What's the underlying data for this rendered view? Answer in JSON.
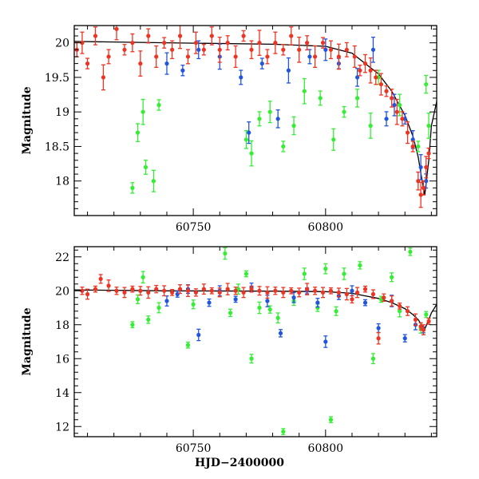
{
  "colors": {
    "green": "#33ee33",
    "blue": "#2255dd",
    "red": "#ee3322",
    "model": "#000000"
  },
  "chart_data": [
    {
      "type": "scatter",
      "panel": "top",
      "xlabel": "",
      "ylabel": "Magnitude",
      "xlim": [
        60705,
        60842
      ],
      "ylim": [
        20.25,
        17.5
      ],
      "y_inverted": true,
      "x_ticks": [
        60750,
        60800
      ],
      "y_ticks": [
        18,
        18.5,
        19,
        19.5,
        20
      ],
      "grid": false,
      "series": [
        {
          "color": "green",
          "points": [
            [
              60727,
              17.9
            ],
            [
              60729,
              18.7
            ],
            [
              60731,
              19.0
            ],
            [
              60732,
              18.2
            ],
            [
              60735,
              18.0
            ],
            [
              60737,
              19.1
            ],
            [
              60770,
              18.6
            ],
            [
              60772,
              18.4
            ],
            [
              60775,
              18.9
            ],
            [
              60779,
              19.0
            ],
            [
              60784,
              18.5
            ],
            [
              60788,
              18.8
            ],
            [
              60792,
              19.3
            ],
            [
              60798,
              19.2
            ],
            [
              60803,
              18.6
            ],
            [
              60807,
              19.0
            ],
            [
              60812,
              19.2
            ],
            [
              60817,
              18.8
            ],
            [
              60820,
              19.5
            ],
            [
              60828,
              19.1
            ],
            [
              60835,
              18.5
            ],
            [
              60838,
              19.4
            ],
            [
              60839,
              18.8
            ]
          ]
        },
        {
          "color": "blue",
          "points": [
            [
              60740,
              19.7
            ],
            [
              60746,
              19.6
            ],
            [
              60752,
              19.9
            ],
            [
              60760,
              19.8
            ],
            [
              60768,
              19.5
            ],
            [
              60771,
              18.7
            ],
            [
              60776,
              19.7
            ],
            [
              60782,
              18.9
            ],
            [
              60786,
              19.6
            ],
            [
              60794,
              19.8
            ],
            [
              60800,
              19.9
            ],
            [
              60805,
              19.7
            ],
            [
              60812,
              19.5
            ],
            [
              60818,
              19.9
            ],
            [
              60823,
              18.9
            ],
            [
              60826,
              19.1
            ],
            [
              60830,
              18.9
            ],
            [
              60833,
              18.6
            ],
            [
              60836,
              18.2
            ],
            [
              60838,
              18.0
            ]
          ]
        },
        {
          "color": "red",
          "points": [
            [
              60706,
              19.9
            ],
            [
              60708,
              20.0
            ],
            [
              60710,
              19.7
            ],
            [
              60713,
              20.1
            ],
            [
              60716,
              19.5
            ],
            [
              60718,
              19.8
            ],
            [
              60721,
              20.2
            ],
            [
              60724,
              19.9
            ],
            [
              60727,
              20.0
            ],
            [
              60730,
              19.7
            ],
            [
              60733,
              20.1
            ],
            [
              60736,
              19.8
            ],
            [
              60739,
              20.0
            ],
            [
              60742,
              19.9
            ],
            [
              60745,
              20.1
            ],
            [
              60748,
              19.8
            ],
            [
              60751,
              20.0
            ],
            [
              60754,
              19.9
            ],
            [
              60757,
              20.1
            ],
            [
              60760,
              19.9
            ],
            [
              60763,
              20.0
            ],
            [
              60766,
              19.8
            ],
            [
              60769,
              20.1
            ],
            [
              60772,
              19.9
            ],
            [
              60775,
              20.0
            ],
            [
              60778,
              19.8
            ],
            [
              60781,
              20.0
            ],
            [
              60784,
              19.9
            ],
            [
              60787,
              20.1
            ],
            [
              60790,
              19.9
            ],
            [
              60793,
              20.0
            ],
            [
              60796,
              19.8
            ],
            [
              60799,
              20.0
            ],
            [
              60802,
              19.9
            ],
            [
              60805,
              19.8
            ],
            [
              60808,
              19.9
            ],
            [
              60811,
              19.8
            ],
            [
              60813,
              19.6
            ],
            [
              60815,
              19.7
            ],
            [
              60817,
              19.6
            ],
            [
              60819,
              19.5
            ],
            [
              60821,
              19.4
            ],
            [
              60823,
              19.3
            ],
            [
              60825,
              19.2
            ],
            [
              60827,
              19.0
            ],
            [
              60829,
              18.9
            ],
            [
              60831,
              18.7
            ],
            [
              60833,
              18.5
            ],
            [
              60835,
              18.0
            ],
            [
              60836,
              17.8
            ],
            [
              60837,
              17.9
            ],
            [
              60838,
              18.2
            ],
            [
              60839,
              18.4
            ]
          ]
        }
      ],
      "model_curve": [
        [
          60705,
          20.02
        ],
        [
          60740,
          20.0
        ],
        [
          60780,
          19.98
        ],
        [
          60800,
          19.95
        ],
        [
          60810,
          19.85
        ],
        [
          60815,
          19.7
        ],
        [
          60820,
          19.55
        ],
        [
          60825,
          19.3
        ],
        [
          60830,
          18.95
        ],
        [
          60833,
          18.65
        ],
        [
          60835,
          18.35
        ],
        [
          60836.5,
          18.0
        ],
        [
          60837.5,
          17.8
        ],
        [
          60839,
          18.3
        ],
        [
          60840,
          18.8
        ],
        [
          60842,
          19.15
        ]
      ]
    },
    {
      "type": "scatter",
      "panel": "bottom",
      "xlabel": "HJD−2400000",
      "ylabel": "Magnitude",
      "xlim": [
        60705,
        60842
      ],
      "ylim": [
        22.6,
        11.4
      ],
      "y_inverted": true,
      "x_ticks": [
        60750,
        60800
      ],
      "y_ticks": [
        12,
        14,
        16,
        18,
        20,
        22
      ],
      "grid": false,
      "series": [
        {
          "color": "green",
          "points": [
            [
              60727,
              18.0
            ],
            [
              60729,
              19.5
            ],
            [
              60731,
              20.8
            ],
            [
              60733,
              18.3
            ],
            [
              60737,
              19.0
            ],
            [
              60748,
              16.8
            ],
            [
              60750,
              19.2
            ],
            [
              60762,
              22.2
            ],
            [
              60764,
              18.7
            ],
            [
              60767,
              20.1
            ],
            [
              60770,
              21.0
            ],
            [
              60772,
              16.0
            ],
            [
              60775,
              19.0
            ],
            [
              60779,
              18.9
            ],
            [
              60782,
              18.4
            ],
            [
              60784,
              11.7
            ],
            [
              60788,
              19.4
            ],
            [
              60792,
              21.0
            ],
            [
              60797,
              19.0
            ],
            [
              60800,
              21.3
            ],
            [
              60802,
              12.4
            ],
            [
              60804,
              18.8
            ],
            [
              60807,
              21.0
            ],
            [
              60813,
              21.5
            ],
            [
              60818,
              16.0
            ],
            [
              60821,
              19.5
            ],
            [
              60825,
              20.8
            ],
            [
              60828,
              18.8
            ],
            [
              60832,
              22.3
            ],
            [
              60836,
              17.8
            ],
            [
              60838,
              18.6
            ]
          ]
        },
        {
          "color": "blue",
          "points": [
            [
              60740,
              19.4
            ],
            [
              60744,
              19.8
            ],
            [
              60748,
              20.1
            ],
            [
              60752,
              17.4
            ],
            [
              60756,
              19.3
            ],
            [
              60760,
              20.0
            ],
            [
              60766,
              19.5
            ],
            [
              60772,
              20.2
            ],
            [
              60778,
              19.4
            ],
            [
              60783,
              17.5
            ],
            [
              60788,
              19.6
            ],
            [
              60793,
              20.0
            ],
            [
              60797,
              19.3
            ],
            [
              60800,
              17.0
            ],
            [
              60805,
              19.7
            ],
            [
              60810,
              20.0
            ],
            [
              60815,
              19.3
            ],
            [
              60820,
              17.8
            ],
            [
              60825,
              19.4
            ],
            [
              60830,
              17.2
            ],
            [
              60834,
              18.0
            ],
            [
              60837,
              17.7
            ]
          ]
        },
        {
          "color": "red",
          "points": [
            [
              60708,
              20.0
            ],
            [
              60710,
              19.8
            ],
            [
              60713,
              20.1
            ],
            [
              60715,
              20.7
            ],
            [
              60718,
              20.3
            ],
            [
              60721,
              20.0
            ],
            [
              60724,
              19.9
            ],
            [
              60727,
              20.1
            ],
            [
              60730,
              20.0
            ],
            [
              60733,
              19.9
            ],
            [
              60736,
              20.1
            ],
            [
              60739,
              20.0
            ],
            [
              60742,
              19.9
            ],
            [
              60745,
              20.1
            ],
            [
              60748,
              20.0
            ],
            [
              60751,
              19.9
            ],
            [
              60754,
              20.1
            ],
            [
              60757,
              20.0
            ],
            [
              60760,
              19.9
            ],
            [
              60763,
              20.1
            ],
            [
              60766,
              20.0
            ],
            [
              60769,
              19.9
            ],
            [
              60772,
              20.1
            ],
            [
              60775,
              20.0
            ],
            [
              60778,
              19.9
            ],
            [
              60781,
              20.0
            ],
            [
              60784,
              19.9
            ],
            [
              60787,
              20.0
            ],
            [
              60790,
              19.9
            ],
            [
              60793,
              20.1
            ],
            [
              60796,
              20.0
            ],
            [
              60799,
              19.9
            ],
            [
              60802,
              20.0
            ],
            [
              60805,
              19.9
            ],
            [
              60808,
              19.8
            ],
            [
              60810,
              19.5
            ],
            [
              60812,
              19.9
            ],
            [
              60815,
              20.1
            ],
            [
              60818,
              19.8
            ],
            [
              60820,
              17.2
            ],
            [
              60822,
              19.6
            ],
            [
              60825,
              19.4
            ],
            [
              60828,
              19.1
            ],
            [
              60831,
              18.8
            ],
            [
              60834,
              18.3
            ],
            [
              60836,
              17.9
            ],
            [
              60837,
              17.7
            ],
            [
              60839,
              18.2
            ]
          ]
        }
      ],
      "model_curve": [
        [
          60705,
          20.05
        ],
        [
          60740,
          20.0
        ],
        [
          60780,
          19.98
        ],
        [
          60800,
          19.95
        ],
        [
          60810,
          19.85
        ],
        [
          60815,
          19.7
        ],
        [
          60820,
          19.55
        ],
        [
          60825,
          19.3
        ],
        [
          60830,
          18.95
        ],
        [
          60833,
          18.6
        ],
        [
          60835,
          18.3
        ],
        [
          60836.5,
          17.95
        ],
        [
          60837.5,
          17.75
        ],
        [
          60839,
          18.3
        ],
        [
          60840,
          18.7
        ],
        [
          60842,
          19.2
        ]
      ]
    }
  ]
}
